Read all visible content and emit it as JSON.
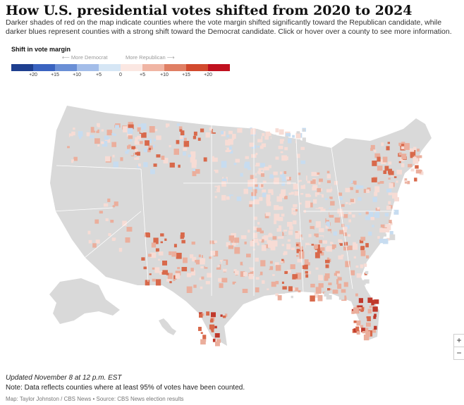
{
  "header": {
    "title": "How U.S. presidential votes shifted from 2020 to 2024",
    "subtitle": "Darker shades of red on the map indicate counties where the vote margin shifted significantly toward the Republican candidate, while darker blues represent counties with a strong shift toward the Democrat candidate. Click or hover over a county to see more information."
  },
  "legend": {
    "title": "Shift in vote margin",
    "more_democrat": "⟵ More Democrat",
    "more_republican": "More Republican ⟶",
    "swatches": [
      "#1e3f8f",
      "#3a63c0",
      "#6a8fd6",
      "#a3bde9",
      "#d6e6f5",
      "#fbe7e2",
      "#f0b5a4",
      "#e07f64",
      "#d24a2e",
      "#c0111f"
    ],
    "ticks": [
      "+20",
      "+15",
      "+10",
      "+5",
      "0",
      "+5",
      "+10",
      "+15",
      "+20"
    ]
  },
  "map": {
    "colors": {
      "no_data": "#d9d9d9",
      "light_red": "#f7dcd5",
      "mid_red": "#ebae9c",
      "dark_red": "#d8694b",
      "darkest_red": "#c0392b",
      "light_blue": "#c7dcf0",
      "blue": "#6b8ed0"
    }
  },
  "zoom": {
    "in_label": "+",
    "out_label": "−"
  },
  "footer": {
    "updated": "Updated November 8 at 12 p.m. EST",
    "note": "Note: Data reflects counties where at least 95% of votes have been counted.",
    "credit": "Map: Taylor Johnston / CBS News • Source: CBS News election results"
  }
}
